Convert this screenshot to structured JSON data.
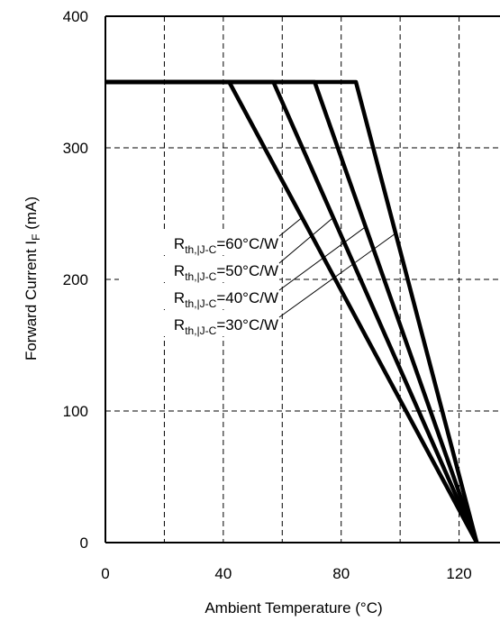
{
  "chart_data": {
    "type": "line",
    "title": "",
    "xlabel": "Ambient Temperature (°C)",
    "ylabel": {
      "main": "Forward Current I",
      "subscript": "F",
      "suffix": " (mA)"
    },
    "xlim": [
      0,
      140
    ],
    "ylim": [
      0,
      400
    ],
    "x_ticks": [
      0,
      40,
      80,
      120
    ],
    "x_tick_labels": [
      "0",
      "40",
      "80",
      "120"
    ],
    "y_ticks": [
      0,
      100,
      200,
      300,
      400
    ],
    "y_tick_labels": [
      "0",
      "100",
      "200",
      "300",
      "400"
    ],
    "x_grid": [
      20,
      40,
      60,
      80,
      100,
      120
    ],
    "y_grid": [
      100,
      200,
      300
    ],
    "grid": true,
    "series": [
      {
        "label_parts": [
          "R",
          "th,|J-C",
          "=60°C/W"
        ],
        "points": [
          [
            0,
            350
          ],
          [
            85,
            350
          ],
          [
            126,
            0
          ]
        ]
      },
      {
        "label_parts": [
          "R",
          "th,|J-C",
          "=50°C/W"
        ],
        "points": [
          [
            0,
            350
          ],
          [
            71,
            350
          ],
          [
            126,
            0
          ]
        ]
      },
      {
        "label_parts": [
          "R",
          "th,|J-C",
          "=40°C/W"
        ],
        "points": [
          [
            0,
            350
          ],
          [
            57,
            350
          ],
          [
            126,
            0
          ]
        ]
      },
      {
        "label_parts": [
          "R",
          "th,|J-C",
          "=30°C/W"
        ],
        "points": [
          [
            0,
            350
          ],
          [
            42,
            350
          ],
          [
            126,
            0
          ]
        ]
      }
    ]
  }
}
